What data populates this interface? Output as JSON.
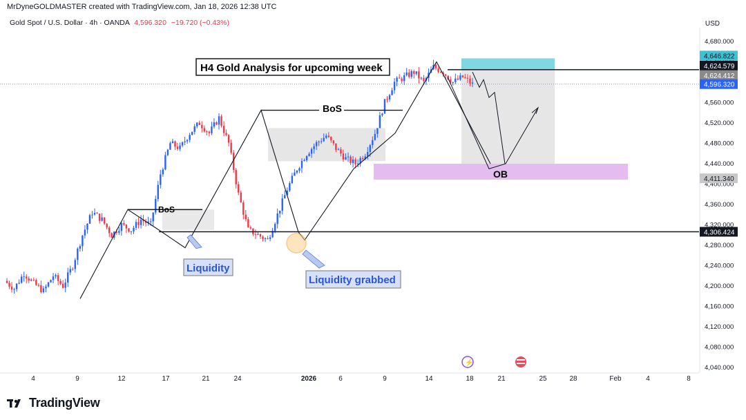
{
  "header": {
    "attribution": "MrDyneGOLDMASTER created with TradingView.com, Jan 18, 2026 12:38 UTC",
    "symbol": "Gold Spot / U.S. Dollar · 4h · OANDA",
    "last_price": "4,596.320",
    "change": "−19.720 (−0.43%)",
    "currency": "USD"
  },
  "brand": {
    "logo_text": "TradingView"
  },
  "colors": {
    "up": "#2962ff",
    "down": "#f23645",
    "cyan_zone": "#7fd8e0",
    "ob_zone": "#dfb0ec",
    "grey_zone": "#e3e3e3",
    "last_price_badge": "#2962ff"
  },
  "annotations": {
    "title": "H4 Gold Analysis for upcoming week",
    "bos_1": "BoS",
    "bos_2": "BoS",
    "liquidity": "Liquidity",
    "liquidity_grabbed": "Liquidity grabbed",
    "ob": "OB"
  },
  "chart_data": {
    "type": "candlestick",
    "title": "H4 Gold Analysis for upcoming week",
    "y_axis": {
      "ticks": [
        "4,680.000",
        "4,640.000",
        "4,600.000",
        "4,560.000",
        "4,520.000",
        "4,480.000",
        "4,440.000",
        "4,400.000",
        "4,360.000",
        "4,320.000",
        "4,280.000",
        "4,240.000",
        "4,200.000",
        "4,160.000",
        "4,120.000",
        "4,080.000",
        "4,040.000"
      ],
      "range": [
        4030,
        4690
      ]
    },
    "x_axis": {
      "labels": [
        "4",
        "9",
        "12",
        "17",
        "21",
        "24",
        "2026",
        "6",
        "9",
        "14",
        "18",
        "21",
        "25",
        "28",
        "Feb",
        "4",
        "8"
      ]
    },
    "price_badges": [
      {
        "label": "4,646.822",
        "value": 4646.822,
        "style": "cyan"
      },
      {
        "label": "4,624.579",
        "value": 4624.579,
        "style": "black"
      },
      {
        "label": "4,624.412",
        "value": 4624.412,
        "style": "grey"
      },
      {
        "label": "4,596.320",
        "value": 4596.32,
        "style": "blue"
      },
      {
        "label": "4,411.340",
        "value": 4411.34,
        "style": "lightgrey"
      },
      {
        "label": "4,306.424",
        "value": 4306.424,
        "style": "black"
      }
    ],
    "horizontal_lines": [
      4624.579,
      4306.424
    ],
    "zones": [
      {
        "name": "target",
        "from": 4624.579,
        "to": 4646.822
      },
      {
        "name": "order-block",
        "from": 4411.34,
        "to": 4440
      }
    ],
    "swing_path": [
      4175,
      4350,
      4310,
      4275,
      4545,
      4306,
      4290,
      4430,
      4500,
      4640,
      4440
    ],
    "projection_path": [
      4600,
      4430,
      4550
    ],
    "ohlc_close_path": [
      4210,
      4195,
      4225,
      4205,
      4190,
      4220,
      4200,
      4240,
      4300,
      4345,
      4330,
      4300,
      4320,
      4310,
      4330,
      4320,
      4420,
      4480,
      4470,
      4500,
      4520,
      4500,
      4530,
      4480,
      4380,
      4310,
      4300,
      4290,
      4340,
      4390,
      4430,
      4460,
      4480,
      4495,
      4470,
      4450,
      4440,
      4460,
      4500,
      4560,
      4600,
      4610,
      4620,
      4600,
      4630,
      4620,
      4600,
      4610,
      4596
    ]
  }
}
